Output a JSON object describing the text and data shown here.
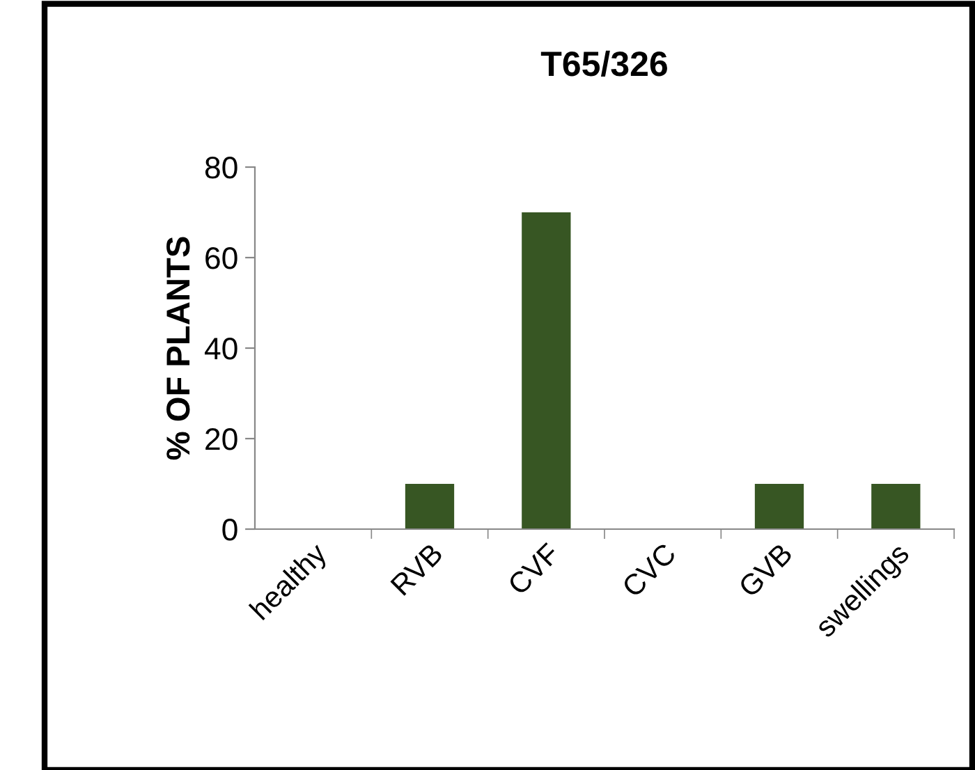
{
  "chart_data": {
    "type": "bar",
    "title": "T65/326",
    "ylabel": "% OF PLANTS",
    "categories": [
      "healthy",
      "RVB",
      "CVF",
      "CVC",
      "GVB",
      "swellings"
    ],
    "values": [
      0,
      10,
      70,
      0,
      10,
      10
    ],
    "color": "#375623",
    "ylim": [
      0,
      80
    ],
    "yticks": [
      0,
      20,
      40,
      60,
      80
    ],
    "grid": false,
    "legend": false
  }
}
